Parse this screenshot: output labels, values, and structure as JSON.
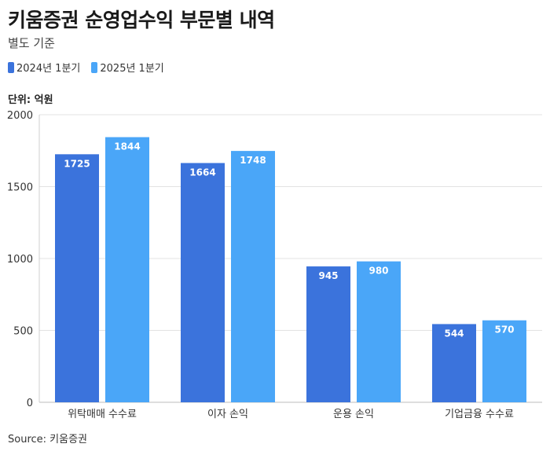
{
  "title": "키움증권 순영업수익 부문별 내역",
  "subtitle": "별도 기준",
  "unit_label": "단위: 억원",
  "source": "Source: 키움증권",
  "colors": {
    "series_2024": "#3b73dc",
    "series_2025": "#4aa6f8",
    "grid": "#e3e3e3"
  },
  "chart_data": {
    "type": "bar",
    "categories": [
      "위탁매매 수수료",
      "이자 손익",
      "운용 손익",
      "기업금융 수수료"
    ],
    "series": [
      {
        "name": "2024년 1분기",
        "values": [
          1725,
          1664,
          945,
          544
        ]
      },
      {
        "name": "2025년 1분기",
        "values": [
          1844,
          1748,
          980,
          570
        ]
      }
    ],
    "ylim": [
      0,
      2000
    ],
    "yticks": [
      0,
      500,
      1000,
      1500,
      2000
    ],
    "grid": true,
    "legend": "top-left"
  }
}
